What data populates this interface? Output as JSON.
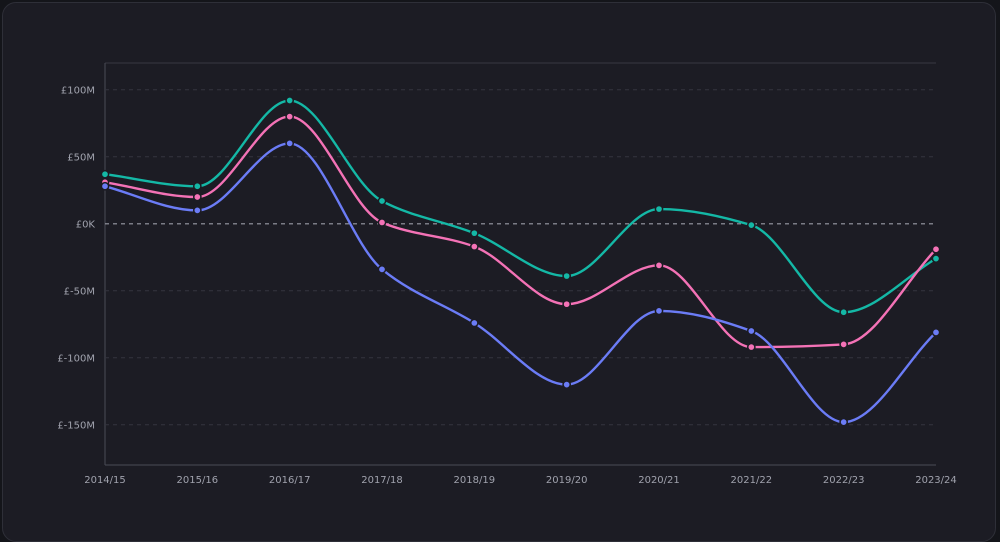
{
  "chart_data": {
    "type": "line",
    "categories": [
      "2014/15",
      "2015/16",
      "2016/17",
      "2017/18",
      "2018/19",
      "2019/20",
      "2020/21",
      "2021/22",
      "2022/23",
      "2023/24"
    ],
    "y_ticks": [
      {
        "value": 100,
        "label": "£100M"
      },
      {
        "value": 50,
        "label": "£50M"
      },
      {
        "value": 0,
        "label": "£0K"
      },
      {
        "value": -50,
        "label": "£-50M"
      },
      {
        "value": -100,
        "label": "£-100M"
      },
      {
        "value": -150,
        "label": "£-150M"
      }
    ],
    "ylim": [
      -180,
      120
    ],
    "grid": true,
    "series": [
      {
        "color": "#14b8a6",
        "values": [
          37,
          28,
          92,
          17,
          -7,
          -39,
          11,
          -1,
          -66,
          -26
        ]
      },
      {
        "color": "#f472b6",
        "values": [
          31,
          20,
          80,
          1,
          -17,
          -60,
          -31,
          -92,
          -90,
          -19
        ]
      },
      {
        "color": "#6b7cf6",
        "values": [
          28,
          10,
          60,
          -34,
          -74,
          -120,
          -65,
          -80,
          -148,
          -81
        ]
      }
    ]
  }
}
